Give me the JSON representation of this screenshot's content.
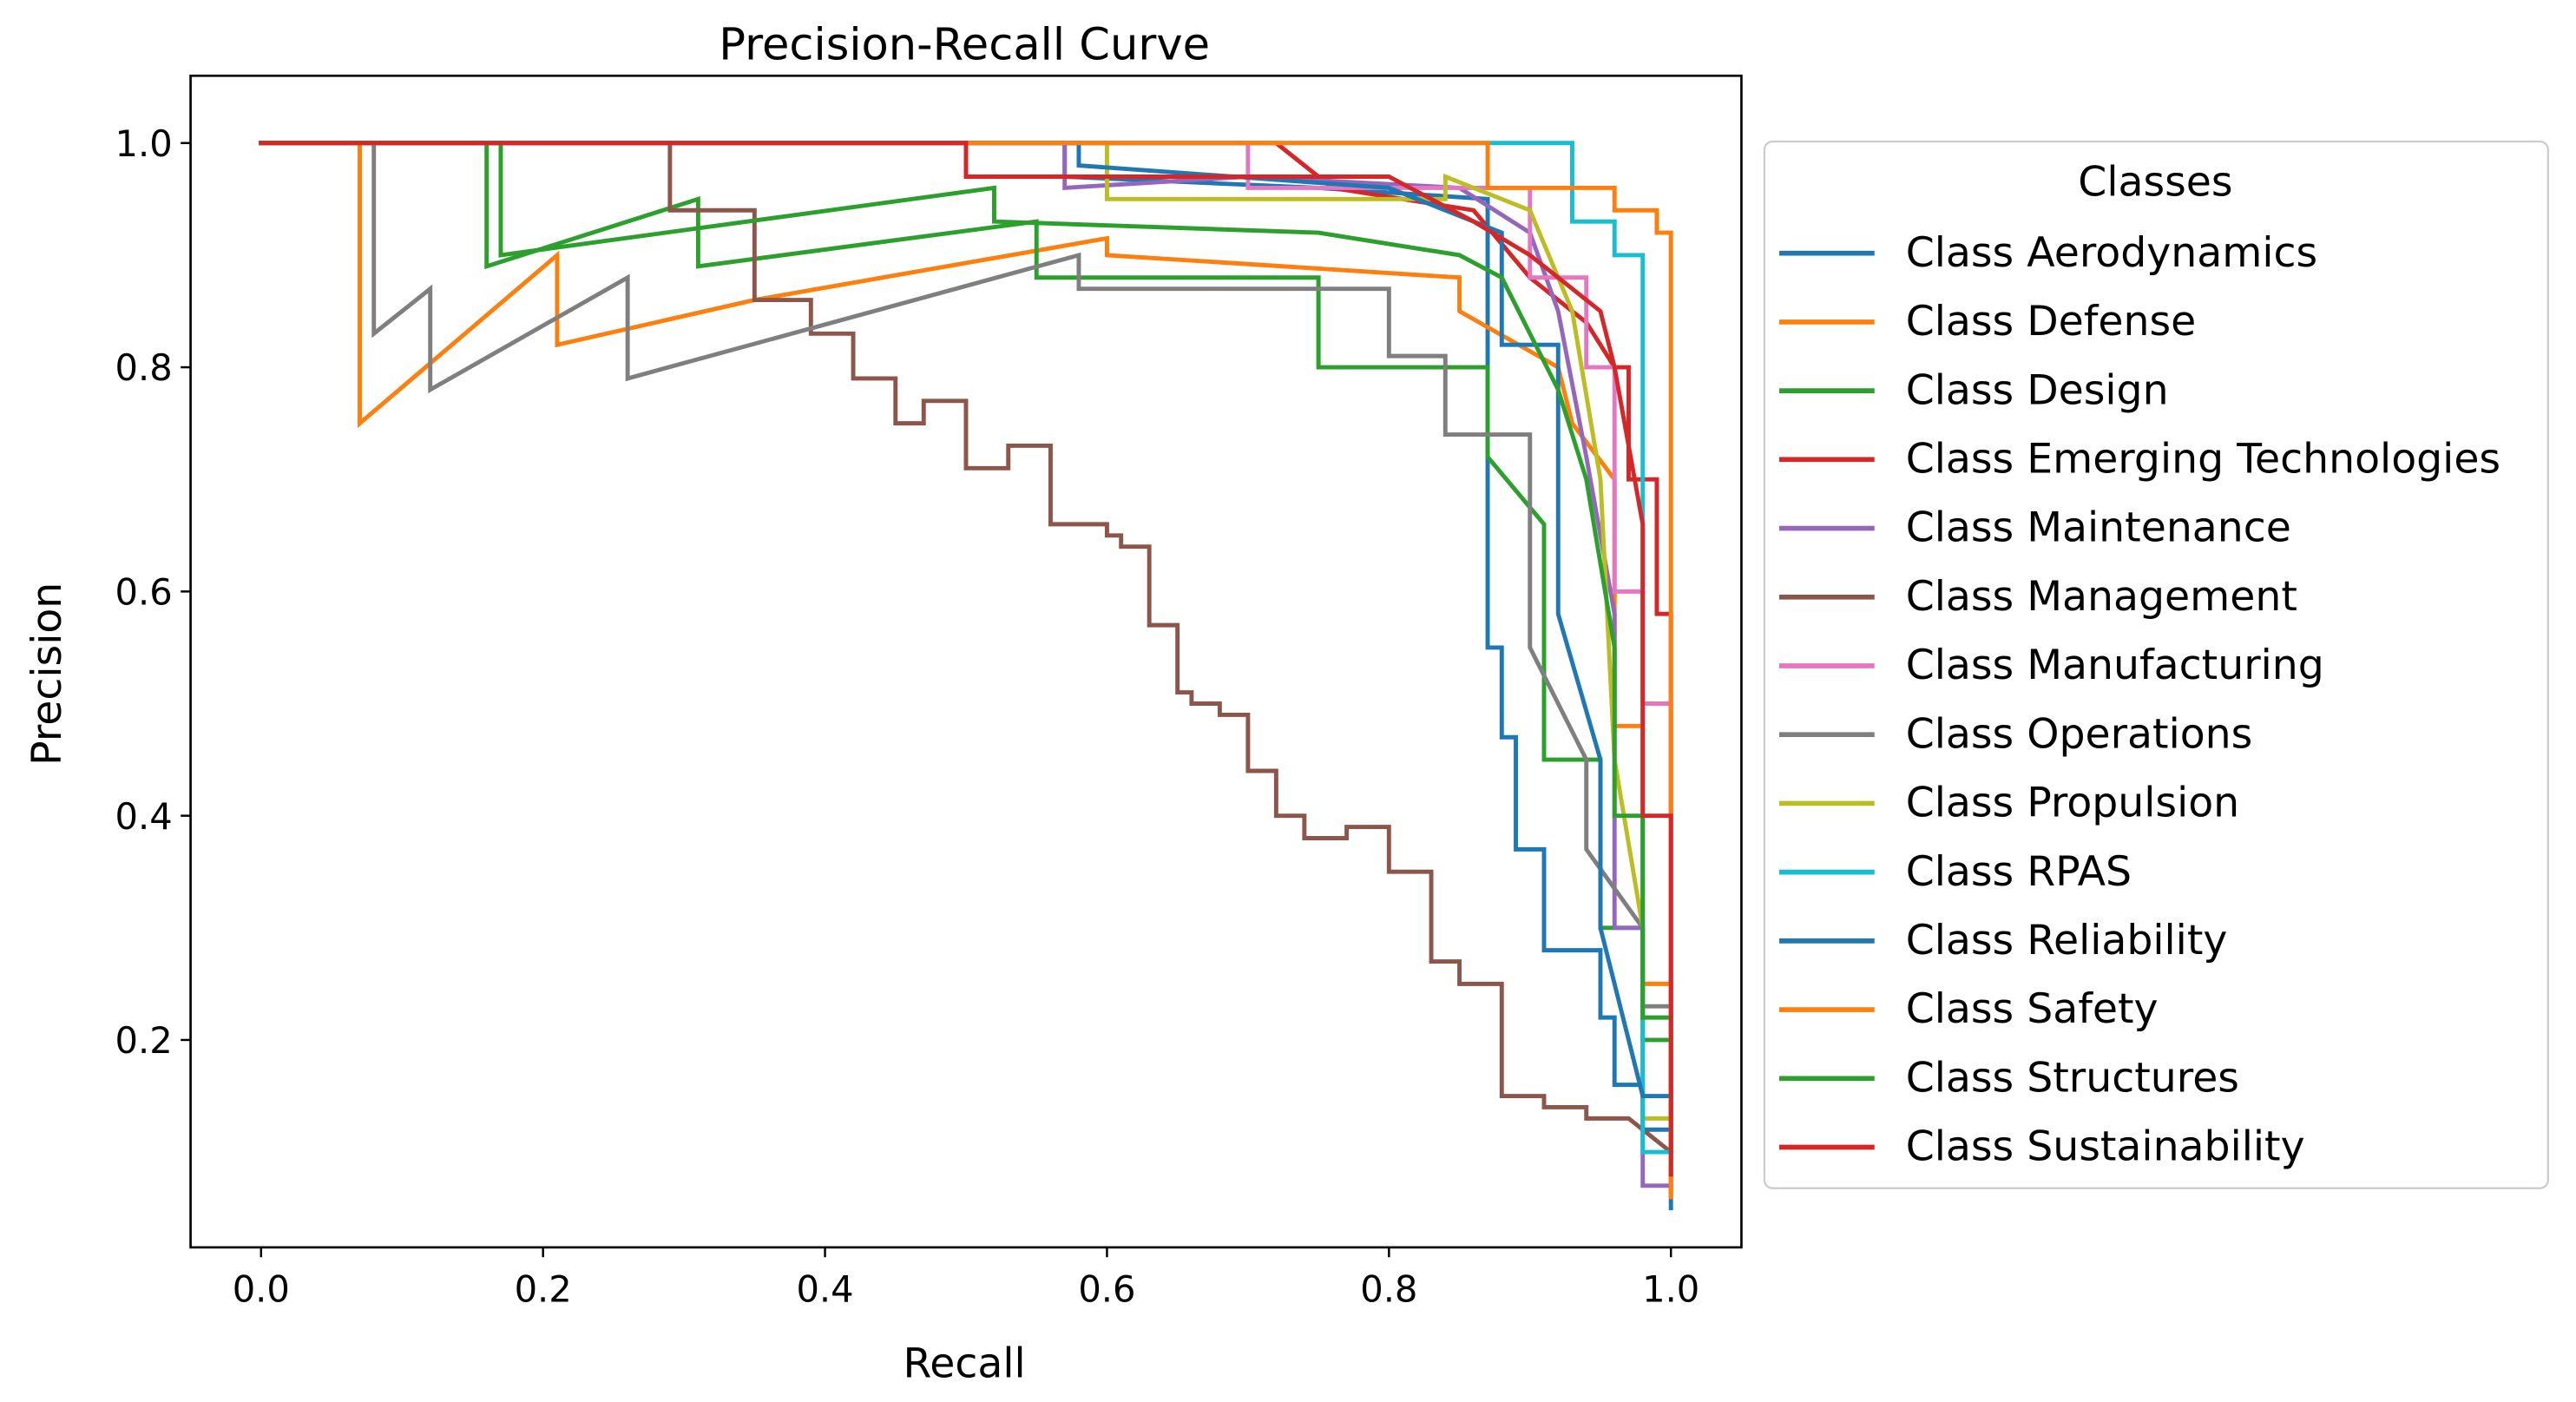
{
  "chart_data": {
    "type": "line",
    "title": "Precision-Recall Curve",
    "xlabel": "Recall",
    "ylabel": "Precision",
    "xlim": [
      -0.05,
      1.05
    ],
    "ylim": [
      0.015,
      1.06
    ],
    "xticks": [
      0.0,
      0.2,
      0.4,
      0.6,
      0.8,
      1.0
    ],
    "xtick_labels": [
      "0.0",
      "0.2",
      "0.4",
      "0.6",
      "0.8",
      "1.0"
    ],
    "yticks": [
      0.2,
      0.4,
      0.6,
      0.8,
      1.0
    ],
    "ytick_labels": [
      "0.2",
      "0.4",
      "0.6",
      "0.8",
      "1.0"
    ],
    "grid": false,
    "legend": {
      "title": "Classes",
      "placement": "outside-right"
    },
    "series": [
      {
        "name": "Class Aerodynamics",
        "color": "#1f77b4",
        "recall": [
          0.0,
          0.57,
          0.57,
          0.75,
          0.87,
          0.87,
          0.88,
          0.88,
          0.89,
          0.89,
          0.91,
          0.91,
          0.95,
          0.95,
          0.96,
          0.96,
          0.98,
          0.98,
          1.0,
          1.0
        ],
        "precision": [
          1.0,
          1.0,
          0.97,
          0.96,
          0.95,
          0.55,
          0.55,
          0.47,
          0.47,
          0.37,
          0.37,
          0.28,
          0.28,
          0.22,
          0.22,
          0.16,
          0.16,
          0.12,
          0.12,
          0.05
        ]
      },
      {
        "name": "Class Defense",
        "color": "#ff7f0e",
        "recall": [
          0.0,
          0.07,
          0.07,
          0.21,
          0.21,
          0.35,
          0.6,
          0.6,
          0.85,
          0.85,
          0.92,
          0.93,
          0.96,
          0.96,
          0.98,
          0.98,
          1.0,
          1.0
        ],
        "precision": [
          1.0,
          1.0,
          0.75,
          0.9,
          0.82,
          0.86,
          0.915,
          0.9,
          0.88,
          0.85,
          0.8,
          0.75,
          0.7,
          0.48,
          0.48,
          0.25,
          0.25,
          0.06
        ]
      },
      {
        "name": "Class Design",
        "color": "#2ca02c",
        "recall": [
          0.0,
          0.16,
          0.16,
          0.31,
          0.31,
          0.55,
          0.55,
          0.75,
          0.75,
          0.87,
          0.87,
          0.91,
          0.91,
          0.95,
          0.95,
          0.98,
          0.98,
          1.0,
          1.0
        ],
        "precision": [
          1.0,
          1.0,
          0.89,
          0.95,
          0.89,
          0.93,
          0.88,
          0.88,
          0.8,
          0.8,
          0.72,
          0.66,
          0.45,
          0.45,
          0.3,
          0.3,
          0.2,
          0.2,
          0.08
        ]
      },
      {
        "name": "Class Emerging Technologies",
        "color": "#d62728",
        "recall": [
          0.0,
          0.72,
          0.76,
          0.86,
          0.88,
          0.9,
          0.92,
          0.94,
          0.96,
          0.97,
          0.97,
          0.99,
          0.99,
          1.0,
          1.0
        ],
        "precision": [
          1.0,
          1.0,
          0.96,
          0.94,
          0.91,
          0.88,
          0.86,
          0.84,
          0.8,
          0.8,
          0.7,
          0.7,
          0.58,
          0.58,
          0.1
        ]
      },
      {
        "name": "Class Maintenance",
        "color": "#9467bd",
        "recall": [
          0.0,
          0.57,
          0.57,
          0.7,
          0.85,
          0.9,
          0.92,
          0.94,
          0.96,
          0.96,
          0.98,
          0.98,
          1.0
        ],
        "precision": [
          1.0,
          1.0,
          0.96,
          0.97,
          0.96,
          0.92,
          0.85,
          0.72,
          0.58,
          0.3,
          0.3,
          0.07,
          0.07
        ]
      },
      {
        "name": "Class Management",
        "color": "#8c564b",
        "recall": [
          0.0,
          0.29,
          0.29,
          0.35,
          0.35,
          0.39,
          0.39,
          0.42,
          0.42,
          0.45,
          0.45,
          0.47,
          0.47,
          0.5,
          0.5,
          0.53,
          0.53,
          0.56,
          0.56,
          0.6,
          0.6,
          0.61,
          0.61,
          0.63,
          0.63,
          0.65,
          0.65,
          0.66,
          0.66,
          0.68,
          0.68,
          0.7,
          0.7,
          0.72,
          0.72,
          0.74,
          0.74,
          0.77,
          0.77,
          0.8,
          0.8,
          0.83,
          0.83,
          0.85,
          0.85,
          0.88,
          0.88,
          0.91,
          0.91,
          0.94,
          0.94,
          0.97,
          1.0
        ],
        "precision": [
          1.0,
          1.0,
          0.94,
          0.94,
          0.86,
          0.86,
          0.83,
          0.83,
          0.79,
          0.79,
          0.75,
          0.75,
          0.77,
          0.77,
          0.71,
          0.71,
          0.73,
          0.73,
          0.66,
          0.66,
          0.65,
          0.65,
          0.64,
          0.64,
          0.57,
          0.57,
          0.51,
          0.51,
          0.5,
          0.5,
          0.49,
          0.49,
          0.44,
          0.44,
          0.4,
          0.4,
          0.38,
          0.38,
          0.39,
          0.39,
          0.35,
          0.35,
          0.27,
          0.27,
          0.25,
          0.25,
          0.15,
          0.15,
          0.14,
          0.14,
          0.13,
          0.13,
          0.1
        ]
      },
      {
        "name": "Class Manufacturing",
        "color": "#e377c2",
        "recall": [
          0.0,
          0.7,
          0.7,
          0.9,
          0.9,
          0.94,
          0.94,
          0.96,
          0.96,
          0.98,
          0.98,
          1.0,
          1.0
        ],
        "precision": [
          1.0,
          1.0,
          0.96,
          0.96,
          0.88,
          0.88,
          0.8,
          0.8,
          0.6,
          0.6,
          0.5,
          0.5,
          0.1
        ]
      },
      {
        "name": "Class Operations",
        "color": "#7f7f7f",
        "recall": [
          0.0,
          0.08,
          0.08,
          0.12,
          0.12,
          0.26,
          0.26,
          0.58,
          0.58,
          0.8,
          0.8,
          0.84,
          0.84,
          0.9,
          0.9,
          0.94,
          0.94,
          0.98,
          0.98,
          1.0
        ],
        "precision": [
          1.0,
          1.0,
          0.83,
          0.87,
          0.78,
          0.88,
          0.79,
          0.9,
          0.87,
          0.87,
          0.81,
          0.81,
          0.74,
          0.74,
          0.55,
          0.45,
          0.37,
          0.3,
          0.23,
          0.23
        ]
      },
      {
        "name": "Class Propulsion",
        "color": "#bcbd22",
        "recall": [
          0.0,
          0.6,
          0.6,
          0.84,
          0.84,
          0.9,
          0.93,
          0.95,
          0.96,
          0.98,
          0.98,
          1.0,
          1.0
        ],
        "precision": [
          1.0,
          1.0,
          0.95,
          0.95,
          0.97,
          0.94,
          0.85,
          0.7,
          0.45,
          0.3,
          0.13,
          0.13,
          0.1
        ]
      },
      {
        "name": "Class RPAS",
        "color": "#17becf",
        "recall": [
          0.0,
          0.93,
          0.93,
          0.96,
          0.96,
          0.98,
          0.98,
          1.0,
          1.0
        ],
        "precision": [
          1.0,
          1.0,
          0.93,
          0.93,
          0.9,
          0.9,
          0.1,
          0.1,
          0.08
        ]
      },
      {
        "name": "Class Reliability",
        "color": "#1f77b4",
        "recall": [
          0.0,
          0.58,
          0.58,
          0.8,
          0.88,
          0.88,
          0.92,
          0.92,
          0.95,
          0.95,
          0.98,
          1.0
        ],
        "precision": [
          1.0,
          1.0,
          0.98,
          0.96,
          0.92,
          0.82,
          0.82,
          0.58,
          0.45,
          0.3,
          0.15,
          0.15
        ]
      },
      {
        "name": "Class Safety",
        "color": "#ff7f0e",
        "recall": [
          0.0,
          0.87,
          0.87,
          0.96,
          0.96,
          0.99,
          0.99,
          1.0,
          1.0
        ],
        "precision": [
          1.0,
          1.0,
          0.96,
          0.96,
          0.94,
          0.94,
          0.92,
          0.92,
          0.06
        ]
      },
      {
        "name": "Class Structures",
        "color": "#2ca02c",
        "recall": [
          0.0,
          0.17,
          0.17,
          0.52,
          0.52,
          0.75,
          0.85,
          0.88,
          0.9,
          0.92,
          0.94,
          0.96,
          0.96,
          0.98,
          0.98,
          1.0,
          1.0
        ],
        "precision": [
          1.0,
          1.0,
          0.9,
          0.96,
          0.93,
          0.92,
          0.9,
          0.88,
          0.83,
          0.78,
          0.7,
          0.55,
          0.4,
          0.4,
          0.22,
          0.22,
          0.1
        ]
      },
      {
        "name": "Class Sustainability",
        "color": "#d62728",
        "recall": [
          0.0,
          0.5,
          0.5,
          0.8,
          0.86,
          0.9,
          0.92,
          0.95,
          0.96,
          0.98,
          0.98,
          1.0,
          1.0
        ],
        "precision": [
          1.0,
          1.0,
          0.97,
          0.97,
          0.93,
          0.9,
          0.88,
          0.85,
          0.8,
          0.66,
          0.4,
          0.4,
          0.08
        ]
      }
    ]
  }
}
